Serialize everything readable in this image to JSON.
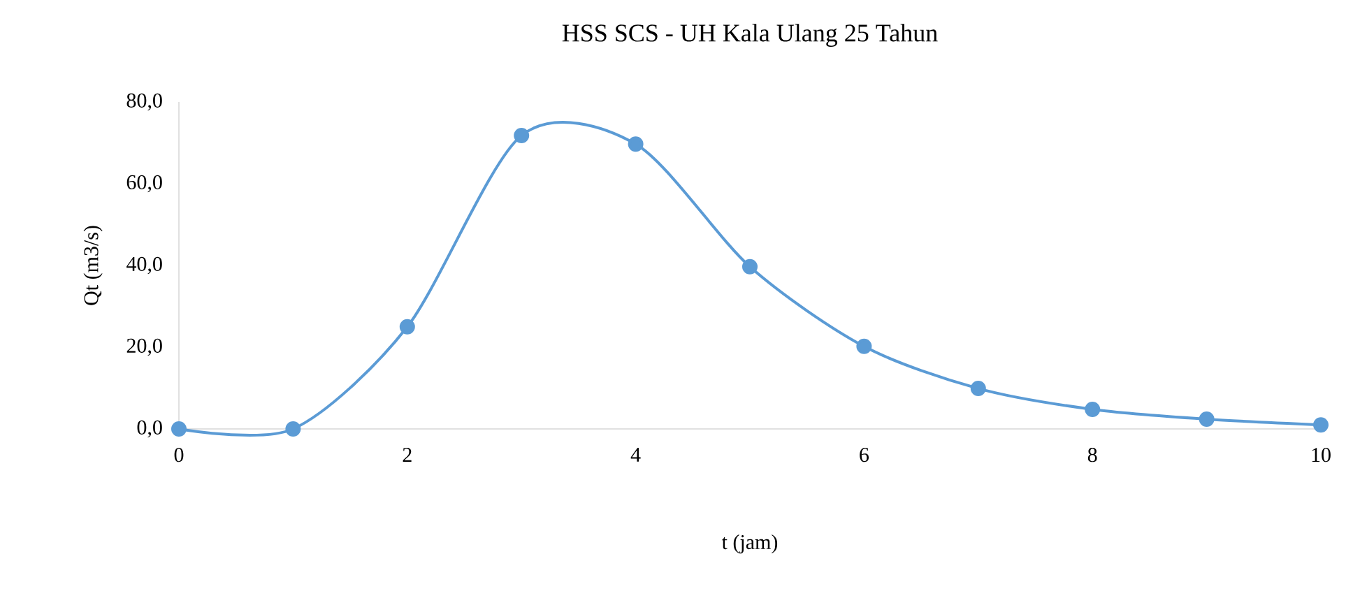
{
  "chart_data": {
    "type": "line",
    "title": "HSS SCS - UH Kala Ulang 25 Tahun",
    "xlabel": "t (jam)",
    "ylabel": "Qt (m3/s)",
    "x": [
      0,
      1,
      2,
      3,
      4,
      5,
      6,
      7,
      8,
      9,
      10
    ],
    "series": [
      {
        "color": "#5b9bd5",
        "values": [
          0,
          0,
          25.0,
          71.8,
          69.7,
          39.7,
          20.2,
          9.9,
          4.8,
          2.4,
          1.0
        ]
      }
    ],
    "xlim": [
      0,
      10
    ],
    "xticks": [
      0,
      2,
      4,
      6,
      8,
      10
    ],
    "ylim": [
      0,
      80
    ],
    "yticks": [
      {
        "value": 0,
        "label": "0,0"
      },
      {
        "value": 20,
        "label": "20,0"
      },
      {
        "value": 40,
        "label": "40,0"
      },
      {
        "value": 60,
        "label": "60,0"
      },
      {
        "value": 80,
        "label": "80,0"
      }
    ],
    "grid": false,
    "marker": "circle",
    "line_style": "solid"
  }
}
